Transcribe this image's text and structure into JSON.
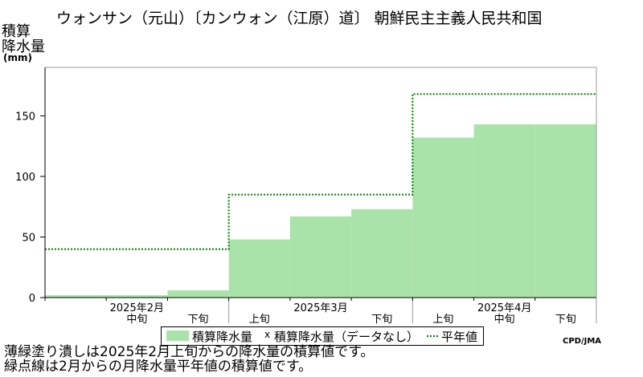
{
  "title": "ウォンサン（元山）〔カンウォン（江原）道〕 朝鮮民主主義人民共和国",
  "ylabel_line1": "積算",
  "ylabel_line2": "降水量",
  "yunit": "(mm)",
  "legend": {
    "series_label": "積算降水量",
    "missing_label": "積算降水量（データなし）",
    "normal_label": "平年値",
    "missing_marker": "x"
  },
  "credit": "CPD/JMA",
  "notes": [
    "薄緑塗り潰しは2025年2月上旬からの降水量の積算値です。",
    "緑点線は2月からの月降水量平年値の積算値です。"
  ],
  "colors": {
    "fill": "#aae3aa",
    "normal_line": "#008000",
    "axis": "#000000",
    "frame": "#999999"
  },
  "chart_data": {
    "type": "area",
    "periods": [
      {
        "month": "2025年2月",
        "dekad": "上旬"
      },
      {
        "month": "2025年2月",
        "dekad": "中旬"
      },
      {
        "month": "2025年2月",
        "dekad": "下旬"
      },
      {
        "month": "2025年3月",
        "dekad": "上旬"
      },
      {
        "month": "2025年3月",
        "dekad": "中旬"
      },
      {
        "month": "2025年3月",
        "dekad": "下旬"
      },
      {
        "month": "2025年4月",
        "dekad": "上旬"
      },
      {
        "month": "2025年4月",
        "dekad": "中旬"
      },
      {
        "month": "2025年4月",
        "dekad": "下旬"
      }
    ],
    "month_labels": [
      "2025年2月",
      "2025年3月",
      "2025年4月"
    ],
    "visible_tick_labels": [
      "中旬",
      "下旬",
      "上旬",
      "下旬",
      "上旬",
      "中旬",
      "下旬"
    ],
    "visible_tick_index": [
      1,
      2,
      3,
      5,
      6,
      7,
      8
    ],
    "series": [
      {
        "name": "積算降水量",
        "values": [
          2,
          2,
          6,
          48,
          67,
          73,
          132,
          143,
          143
        ],
        "last_index": 8
      }
    ],
    "normal": {
      "name": "平年値",
      "values": [
        40,
        40,
        40,
        85,
        85,
        85,
        168,
        168,
        168
      ]
    },
    "ylim": [
      0,
      190
    ],
    "yticks": [
      0,
      50,
      100,
      150
    ],
    "grid": false
  }
}
